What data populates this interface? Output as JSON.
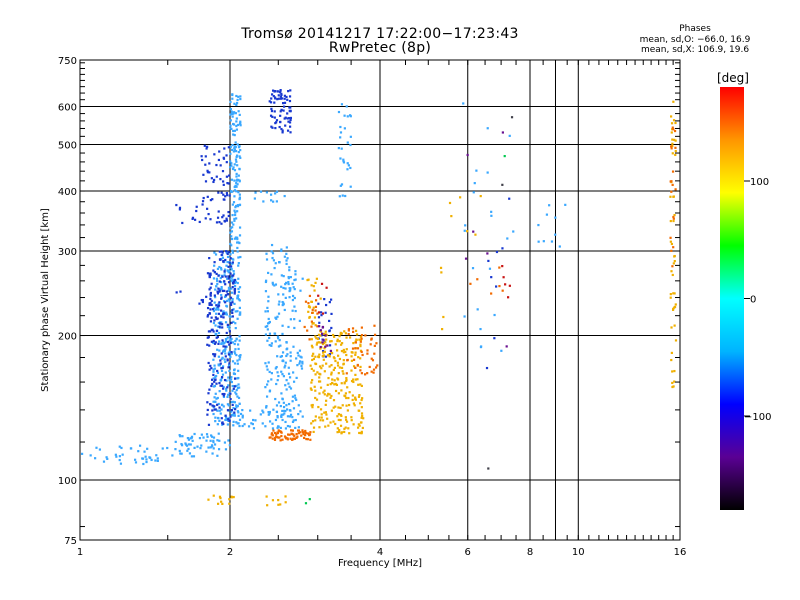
{
  "chart_data": {
    "type": "scatter",
    "title": "Tromsø 20141217 17:22:00−17:23:43",
    "subtitle": "RwPretec (8p)",
    "xlabel": "Frequency [MHz]",
    "ylabel": "Stationary phase Virtual Height [km]",
    "x_scale": "log",
    "y_scale": "log",
    "xlim": [
      1,
      16
    ],
    "ylim": [
      75,
      750
    ],
    "x_ticks": [
      1,
      2,
      4,
      6,
      8,
      10,
      16
    ],
    "x_ticks_minor": [
      9
    ],
    "y_ticks": [
      75,
      100,
      200,
      300,
      400,
      500,
      600,
      750
    ],
    "grid": true,
    "stats": {
      "heading": "Phases",
      "line_o": "mean, sd,O: −66.0, 16.9",
      "line_x": "mean, sd,X: 106.9, 19.6"
    },
    "colorbar": {
      "label": "[deg]",
      "range": [
        -180,
        180
      ],
      "ticks": [
        100,
        0,
        -100
      ],
      "colors": [
        "#000000",
        "#5a0094",
        "#0000ff",
        "#00b4ff",
        "#00ffff",
        "#00ff00",
        "#ffff00",
        "#ff9600",
        "#ff0000"
      ]
    },
    "series": [
      {
        "color": "#3aa8ff",
        "clusters": [
          {
            "f": [
              1.0,
              1.55
            ],
            "h": [
              108,
              118
            ],
            "n": 40
          },
          {
            "f": [
              1.55,
              2.0
            ],
            "h": [
              112,
              125
            ],
            "n": 60
          },
          {
            "f": [
              1.85,
              2.1
            ],
            "h": [
              130,
              300
            ],
            "n": 320
          },
          {
            "f": [
              2.0,
              2.1
            ],
            "h": [
              300,
              650
            ],
            "n": 140
          },
          {
            "f": [
              2.35,
              2.65
            ],
            "h": [
              135,
              310
            ],
            "n": 170
          },
          {
            "f": [
              2.65,
              2.8
            ],
            "h": [
              135,
              290
            ],
            "n": 45
          },
          {
            "f": [
              2.0,
              2.8
            ],
            "h": [
              128,
              140
            ],
            "n": 50
          },
          {
            "f": [
              3.3,
              3.5
            ],
            "h": [
              390,
              620
            ],
            "n": 30
          },
          {
            "f": [
              2.2,
              2.6
            ],
            "h": [
              380,
              400
            ],
            "n": 12
          },
          {
            "f": [
              5.8,
              7.5
            ],
            "h": [
              180,
              620
            ],
            "n": 22
          },
          {
            "f": [
              8.3,
              9.5
            ],
            "h": [
              290,
              380
            ],
            "n": 10
          }
        ]
      },
      {
        "color": "#1838d0",
        "clusters": [
          {
            "f": [
              1.8,
              2.05
            ],
            "h": [
              130,
              300
            ],
            "n": 200
          },
          {
            "f": [
              1.75,
              2.0
            ],
            "h": [
              380,
              500
            ],
            "n": 50
          },
          {
            "f": [
              2.4,
              2.65
            ],
            "h": [
              530,
              650
            ],
            "n": 75
          },
          {
            "f": [
              1.55,
              2.0
            ],
            "h": [
              340,
              380
            ],
            "n": 28
          },
          {
            "f": [
              1.55,
              2.0
            ],
            "h": [
              230,
              250
            ],
            "n": 18
          },
          {
            "f": [
              3.0,
              3.2
            ],
            "h": [
              175,
              240
            ],
            "n": 25
          },
          {
            "f": [
              6.5,
              7.3
            ],
            "h": [
              150,
              420
            ],
            "n": 8
          }
        ]
      },
      {
        "color": "#f0b000",
        "clusters": [
          {
            "f": [
              2.9,
              3.7
            ],
            "h": [
              125,
              205
            ],
            "n": 280
          },
          {
            "f": [
              2.85,
              3.05
            ],
            "h": [
              210,
              265
            ],
            "n": 22
          },
          {
            "f": [
              1.8,
              2.1
            ],
            "h": [
              88,
              93
            ],
            "n": 12
          },
          {
            "f": [
              2.35,
              2.6
            ],
            "h": [
              88,
              93
            ],
            "n": 8
          },
          {
            "f": [
              15.3,
              15.7
            ],
            "h": [
              150,
              620
            ],
            "n": 50
          },
          {
            "f": [
              5.2,
              6.5
            ],
            "h": [
              200,
              400
            ],
            "n": 10
          }
        ]
      },
      {
        "color": "#f26a00",
        "clusters": [
          {
            "f": [
              2.4,
              2.9
            ],
            "h": [
              121,
              127
            ],
            "n": 70
          },
          {
            "f": [
              3.4,
              3.95
            ],
            "h": [
              165,
              210
            ],
            "n": 45
          },
          {
            "f": [
              2.75,
              3.0
            ],
            "h": [
              195,
              250
            ],
            "n": 15
          },
          {
            "f": [
              15.3,
              15.7
            ],
            "h": [
              250,
              550
            ],
            "n": 18
          },
          {
            "f": [
              6.0,
              7.3
            ],
            "h": [
              230,
              280
            ],
            "n": 6
          }
        ]
      },
      {
        "color": "#c81414",
        "clusters": [
          {
            "f": [
              7.0,
              7.3
            ],
            "h": [
              230,
              290
            ],
            "n": 5
          },
          {
            "f": [
              3.0,
              3.4
            ],
            "h": [
              220,
              260
            ],
            "n": 5
          }
        ]
      },
      {
        "color": "#6a1090",
        "clusters": [
          {
            "f": [
              3.0,
              3.2
            ],
            "h": [
              185,
              210
            ],
            "n": 12
          },
          {
            "f": [
              5.9,
              7.3
            ],
            "h": [
              180,
              560
            ],
            "n": 6
          }
        ]
      },
      {
        "color": "#00c850",
        "clusters": [
          {
            "f": [
              2.8,
              2.9
            ],
            "h": [
              89,
              92
            ],
            "n": 2
          },
          {
            "f": [
              7.0,
              7.2
            ],
            "h": [
              470,
              490
            ],
            "n": 1
          }
        ]
      },
      {
        "color": "#40404a",
        "clusters": [
          {
            "f": [
              6.4,
              6.6
            ],
            "h": [
              102,
              106
            ],
            "n": 1
          },
          {
            "f": [
              7.3,
              7.5
            ],
            "h": [
              560,
              575
            ],
            "n": 1
          },
          {
            "f": [
              6.9,
              7.1
            ],
            "h": [
              410,
              420
            ],
            "n": 1
          }
        ]
      }
    ]
  }
}
